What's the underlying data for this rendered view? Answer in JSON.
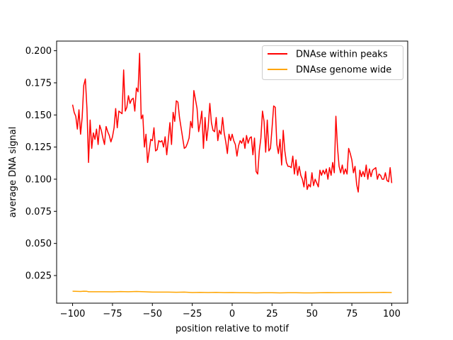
{
  "chart_data": {
    "type": "line",
    "title": "",
    "xlabel": "position relative to motif",
    "ylabel": "average DNA signal",
    "xlim": [
      -110,
      110
    ],
    "ylim": [
      0.0035,
      0.2075
    ],
    "xticks": [
      -100,
      -75,
      -50,
      -25,
      0,
      25,
      50,
      75,
      100
    ],
    "xtick_labels": [
      "−100",
      "−75",
      "−50",
      "−25",
      "0",
      "25",
      "50",
      "75",
      "100"
    ],
    "yticks": [
      0.025,
      0.05,
      0.075,
      0.1,
      0.125,
      0.15,
      0.175,
      0.2
    ],
    "ytick_labels": [
      "0.025",
      "0.050",
      "0.075",
      "0.100",
      "0.125",
      "0.150",
      "0.175",
      "0.200"
    ],
    "grid": false,
    "legend_position": "top-right",
    "series": [
      {
        "name": "DNAse within peaks",
        "color": "#ff0000",
        "points": [
          [
            -100,
            0.158
          ],
          [
            -99,
            0.152
          ],
          [
            -98,
            0.149
          ],
          [
            -97,
            0.139
          ],
          [
            -96,
            0.154
          ],
          [
            -95,
            0.135
          ],
          [
            -94,
            0.148
          ],
          [
            -93,
            0.173
          ],
          [
            -92,
            0.178
          ],
          [
            -91,
            0.155
          ],
          [
            -90,
            0.113
          ],
          [
            -89,
            0.146
          ],
          [
            -88,
            0.124
          ],
          [
            -87,
            0.136
          ],
          [
            -86,
            0.131
          ],
          [
            -85,
            0.139
          ],
          [
            -84,
            0.127
          ],
          [
            -83,
            0.142
          ],
          [
            -82,
            0.138
          ],
          [
            -81,
            0.132
          ],
          [
            -80,
            0.127
          ],
          [
            -79,
            0.141
          ],
          [
            -78,
            0.137
          ],
          [
            -77,
            0.134
          ],
          [
            -76,
            0.129
          ],
          [
            -75,
            0.133
          ],
          [
            -74,
            0.14
          ],
          [
            -73,
            0.155
          ],
          [
            -72,
            0.14
          ],
          [
            -71,
            0.153
          ],
          [
            -70,
            0.152
          ],
          [
            -69,
            0.151
          ],
          [
            -68,
            0.185
          ],
          [
            -67,
            0.153
          ],
          [
            -66,
            0.156
          ],
          [
            -65,
            0.165
          ],
          [
            -64,
            0.159
          ],
          [
            -63,
            0.162
          ],
          [
            -62,
            0.163
          ],
          [
            -61,
            0.153
          ],
          [
            -60,
            0.171
          ],
          [
            -59,
            0.168
          ],
          [
            -58,
            0.198
          ],
          [
            -57,
            0.147
          ],
          [
            -56,
            0.15
          ],
          [
            -55,
            0.125
          ],
          [
            -54,
            0.135
          ],
          [
            -53,
            0.113
          ],
          [
            -52,
            0.122
          ],
          [
            -51,
            0.131
          ],
          [
            -50,
            0.13
          ],
          [
            -49,
            0.14
          ],
          [
            -48,
            0.122
          ],
          [
            -47,
            0.123
          ],
          [
            -46,
            0.13
          ],
          [
            -45,
            0.129
          ],
          [
            -44,
            0.13
          ],
          [
            -43,
            0.125
          ],
          [
            -42,
            0.133
          ],
          [
            -41,
            0.119
          ],
          [
            -40,
            0.131
          ],
          [
            -39,
            0.144
          ],
          [
            -38,
            0.127
          ],
          [
            -37,
            0.152
          ],
          [
            -36,
            0.145
          ],
          [
            -35,
            0.161
          ],
          [
            -34,
            0.16
          ],
          [
            -33,
            0.148
          ],
          [
            -32,
            0.14
          ],
          [
            -31,
            0.132
          ],
          [
            -30,
            0.124
          ],
          [
            -29,
            0.125
          ],
          [
            -28,
            0.128
          ],
          [
            -27,
            0.132
          ],
          [
            -26,
            0.145
          ],
          [
            -25,
            0.14
          ],
          [
            -24,
            0.169
          ],
          [
            -23,
            0.162
          ],
          [
            -22,
            0.155
          ],
          [
            -21,
            0.137
          ],
          [
            -20,
            0.144
          ],
          [
            -19,
            0.153
          ],
          [
            -18,
            0.124
          ],
          [
            -17,
            0.148
          ],
          [
            -16,
            0.13
          ],
          [
            -15,
            0.141
          ],
          [
            -14,
            0.159
          ],
          [
            -13,
            0.144
          ],
          [
            -12,
            0.138
          ],
          [
            -11,
            0.137
          ],
          [
            -10,
            0.148
          ],
          [
            -9,
            0.13
          ],
          [
            -8,
            0.138
          ],
          [
            -7,
            0.135
          ],
          [
            -6,
            0.148
          ],
          [
            -5,
            0.136
          ],
          [
            -4,
            0.129
          ],
          [
            -3,
            0.12
          ],
          [
            -2,
            0.135
          ],
          [
            -1,
            0.13
          ],
          [
            0,
            0.135
          ],
          [
            1,
            0.13
          ],
          [
            2,
            0.127
          ],
          [
            3,
            0.118
          ],
          [
            4,
            0.126
          ],
          [
            5,
            0.13
          ],
          [
            6,
            0.128
          ],
          [
            7,
            0.132
          ],
          [
            8,
            0.124
          ],
          [
            9,
            0.134
          ],
          [
            10,
            0.128
          ],
          [
            11,
            0.132
          ],
          [
            12,
            0.133
          ],
          [
            13,
            0.119
          ],
          [
            14,
            0.132
          ],
          [
            15,
            0.106
          ],
          [
            16,
            0.104
          ],
          [
            17,
            0.122
          ],
          [
            18,
            0.132
          ],
          [
            19,
            0.153
          ],
          [
            20,
            0.145
          ],
          [
            21,
            0.121
          ],
          [
            22,
            0.146
          ],
          [
            23,
            0.122
          ],
          [
            24,
            0.124
          ],
          [
            25,
            0.14
          ],
          [
            26,
            0.157
          ],
          [
            27,
            0.156
          ],
          [
            28,
            0.127
          ],
          [
            29,
            0.12
          ],
          [
            30,
            0.131
          ],
          [
            31,
            0.111
          ],
          [
            32,
            0.138
          ],
          [
            33,
            0.122
          ],
          [
            34,
            0.113
          ],
          [
            35,
            0.11
          ],
          [
            36,
            0.11
          ],
          [
            37,
            0.109
          ],
          [
            38,
            0.118
          ],
          [
            39,
            0.104
          ],
          [
            40,
            0.115
          ],
          [
            41,
            0.103
          ],
          [
            42,
            0.11
          ],
          [
            43,
            0.103
          ],
          [
            44,
            0.1
          ],
          [
            45,
            0.094
          ],
          [
            46,
            0.106
          ],
          [
            47,
            0.092
          ],
          [
            48,
            0.096
          ],
          [
            49,
            0.094
          ],
          [
            50,
            0.105
          ],
          [
            51,
            0.095
          ],
          [
            52,
            0.1
          ],
          [
            53,
            0.097
          ],
          [
            54,
            0.094
          ],
          [
            55,
            0.107
          ],
          [
            56,
            0.103
          ],
          [
            57,
            0.107
          ],
          [
            58,
            0.104
          ],
          [
            59,
            0.108
          ],
          [
            60,
            0.1
          ],
          [
            61,
            0.109
          ],
          [
            62,
            0.103
          ],
          [
            63,
            0.113
          ],
          [
            64,
            0.105
          ],
          [
            65,
            0.149
          ],
          [
            66,
            0.125
          ],
          [
            67,
            0.11
          ],
          [
            68,
            0.105
          ],
          [
            69,
            0.111
          ],
          [
            70,
            0.104
          ],
          [
            71,
            0.108
          ],
          [
            72,
            0.104
          ],
          [
            73,
            0.124
          ],
          [
            74,
            0.12
          ],
          [
            75,
            0.115
          ],
          [
            76,
            0.105
          ],
          [
            77,
            0.11
          ],
          [
            78,
            0.096
          ],
          [
            79,
            0.09
          ],
          [
            80,
            0.107
          ],
          [
            81,
            0.102
          ],
          [
            82,
            0.106
          ],
          [
            83,
            0.102
          ],
          [
            84,
            0.111
          ],
          [
            85,
            0.1
          ],
          [
            86,
            0.108
          ],
          [
            87,
            0.102
          ],
          [
            88,
            0.107
          ],
          [
            89,
            0.108
          ],
          [
            90,
            0.109
          ],
          [
            91,
            0.1
          ],
          [
            92,
            0.104
          ],
          [
            93,
            0.103
          ],
          [
            94,
            0.1
          ],
          [
            95,
            0.1
          ],
          [
            96,
            0.105
          ],
          [
            97,
            0.099
          ],
          [
            98,
            0.098
          ],
          [
            99,
            0.109
          ],
          [
            100,
            0.097
          ]
        ]
      },
      {
        "name": "DNAse genome wide",
        "color": "#ffa500",
        "points": [
          [
            -100,
            0.0128
          ],
          [
            -95,
            0.0126
          ],
          [
            -93,
            0.0128
          ],
          [
            -91,
            0.0127
          ],
          [
            -90,
            0.0124
          ],
          [
            -85,
            0.0124
          ],
          [
            -80,
            0.0124
          ],
          [
            -75,
            0.0123
          ],
          [
            -70,
            0.0125
          ],
          [
            -65,
            0.0124
          ],
          [
            -60,
            0.0126
          ],
          [
            -55,
            0.0124
          ],
          [
            -50,
            0.0121
          ],
          [
            -45,
            0.0121
          ],
          [
            -40,
            0.0121
          ],
          [
            -35,
            0.012
          ],
          [
            -30,
            0.0121
          ],
          [
            -25,
            0.0118
          ],
          [
            -20,
            0.0119
          ],
          [
            -15,
            0.0118
          ],
          [
            -10,
            0.0119
          ],
          [
            -5,
            0.0117
          ],
          [
            0,
            0.0118
          ],
          [
            5,
            0.0116
          ],
          [
            10,
            0.0116
          ],
          [
            15,
            0.0115
          ],
          [
            20,
            0.0116
          ],
          [
            25,
            0.0116
          ],
          [
            30,
            0.0115
          ],
          [
            35,
            0.0116
          ],
          [
            40,
            0.0116
          ],
          [
            45,
            0.0115
          ],
          [
            50,
            0.0115
          ],
          [
            55,
            0.0116
          ],
          [
            60,
            0.0117
          ],
          [
            65,
            0.0116
          ],
          [
            70,
            0.0117
          ],
          [
            75,
            0.0117
          ],
          [
            80,
            0.0117
          ],
          [
            85,
            0.0118
          ],
          [
            90,
            0.0118
          ],
          [
            95,
            0.0119
          ],
          [
            100,
            0.0118
          ]
        ]
      }
    ]
  }
}
